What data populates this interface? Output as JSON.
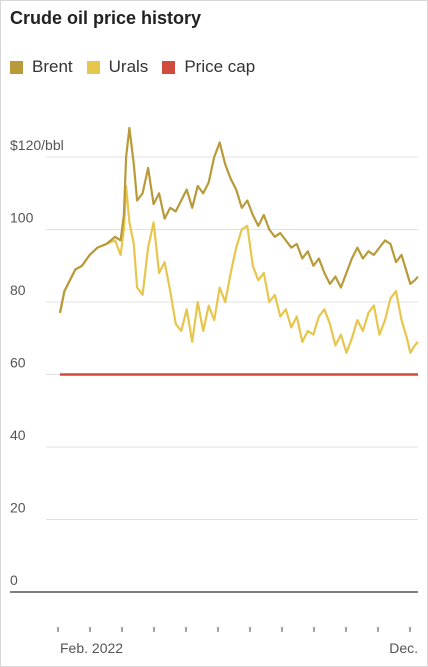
{
  "chart_data": {
    "type": "line",
    "title": "Crude oil price history",
    "ylim": [
      0,
      130
    ],
    "y_ticks": [
      {
        "value": 120,
        "label": "$120/bbl"
      },
      {
        "value": 100,
        "label": "100"
      },
      {
        "value": 80,
        "label": "80"
      },
      {
        "value": 60,
        "label": "60"
      },
      {
        "value": 40,
        "label": "40"
      },
      {
        "value": 20,
        "label": "20"
      },
      {
        "value": 0,
        "label": "0"
      }
    ],
    "x_labels": {
      "start": "Feb. 2022",
      "end": "Dec."
    },
    "x_tick_count": 12,
    "xlim": [
      0,
      325
    ],
    "grid": true,
    "legend_position": "top-left",
    "series": [
      {
        "name": "Brent",
        "color": "#b89a3a",
        "x": [
          0,
          4,
          9,
          14,
          20,
          27,
          34,
          42,
          50,
          55,
          58,
          60,
          63,
          67,
          70,
          75,
          80,
          85,
          90,
          95,
          100,
          105,
          110,
          115,
          120,
          125,
          130,
          135,
          140,
          145,
          150,
          155,
          160,
          165,
          170,
          175,
          180,
          185,
          190,
          195,
          200,
          205,
          210,
          215,
          220,
          225,
          230,
          235,
          240,
          245,
          250,
          255,
          260,
          265,
          270,
          275,
          280,
          285,
          290,
          295,
          300,
          305,
          310,
          315,
          318,
          322,
          325
        ],
        "values": [
          77,
          83,
          86,
          89,
          90,
          93,
          95,
          96,
          98,
          97,
          104,
          120,
          128,
          118,
          108,
          110,
          117,
          107,
          110,
          103,
          106,
          105,
          108,
          111,
          106,
          112,
          110,
          113,
          120,
          124,
          118,
          114,
          111,
          106,
          108,
          104,
          101,
          104,
          100,
          98,
          99,
          97,
          95,
          96,
          92,
          94,
          90,
          92,
          88,
          85,
          87,
          84,
          88,
          92,
          95,
          92,
          94,
          93,
          95,
          97,
          96,
          91,
          93,
          88,
          85,
          86,
          87
        ]
      },
      {
        "name": "Urals",
        "color": "#e6c64d",
        "x": [
          0,
          4,
          9,
          14,
          20,
          27,
          34,
          42,
          50,
          55,
          58,
          60,
          63,
          67,
          70,
          75,
          80,
          85,
          90,
          95,
          100,
          105,
          110,
          115,
          120,
          125,
          130,
          135,
          140,
          145,
          150,
          155,
          160,
          165,
          170,
          175,
          180,
          185,
          190,
          195,
          200,
          205,
          210,
          215,
          220,
          225,
          230,
          235,
          240,
          245,
          250,
          255,
          260,
          265,
          270,
          275,
          280,
          285,
          290,
          295,
          300,
          305,
          310,
          315,
          318,
          322,
          325
        ],
        "values": [
          77,
          83,
          86,
          89,
          90,
          93,
          95,
          96,
          97,
          93,
          100,
          112,
          102,
          96,
          84,
          82,
          95,
          102,
          88,
          91,
          83,
          74,
          72,
          78,
          69,
          80,
          72,
          79,
          75,
          84,
          80,
          88,
          95,
          100,
          101,
          90,
          86,
          88,
          80,
          82,
          76,
          78,
          73,
          76,
          69,
          72,
          71,
          76,
          78,
          74,
          68,
          71,
          66,
          70,
          75,
          72,
          77,
          79,
          71,
          75,
          81,
          83,
          75,
          70,
          66,
          68,
          69
        ]
      },
      {
        "name": "Price cap",
        "color": "#cf4b3c",
        "x": [
          0,
          325
        ],
        "values": [
          60,
          60
        ]
      }
    ]
  }
}
